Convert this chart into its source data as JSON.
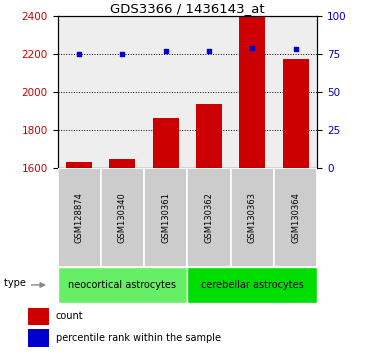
{
  "title": "GDS3366 / 1436143_at",
  "samples": [
    "GSM128874",
    "GSM130340",
    "GSM130361",
    "GSM130362",
    "GSM130363",
    "GSM130364"
  ],
  "bar_values": [
    1630,
    1650,
    1865,
    1935,
    2400,
    2175
  ],
  "percentile_values": [
    75,
    75,
    77,
    77,
    79,
    78
  ],
  "ylim_left": [
    1600,
    2400
  ],
  "ylim_right": [
    0,
    100
  ],
  "yticks_left": [
    1600,
    1800,
    2000,
    2200,
    2400
  ],
  "yticks_right": [
    0,
    25,
    50,
    75,
    100
  ],
  "bar_color": "#cc0000",
  "dot_color": "#0000cc",
  "group1_label": "neocortical astrocytes",
  "group1_color": "#66ee66",
  "group2_label": "cerebellar astrocytes",
  "group2_color": "#00dd00",
  "group_label": "cell type",
  "legend_count_color": "#cc0000",
  "legend_pct_color": "#0000cc",
  "legend_count_label": "count",
  "legend_pct_label": "percentile rank within the sample",
  "background_color": "#ffffff",
  "plot_bg_color": "#eeeeee",
  "sample_box_color": "#cccccc",
  "tick_color_left": "#cc0000",
  "tick_color_right": "#0000cc",
  "bar_width": 0.6,
  "figsize": [
    3.71,
    3.54
  ],
  "dpi": 100
}
